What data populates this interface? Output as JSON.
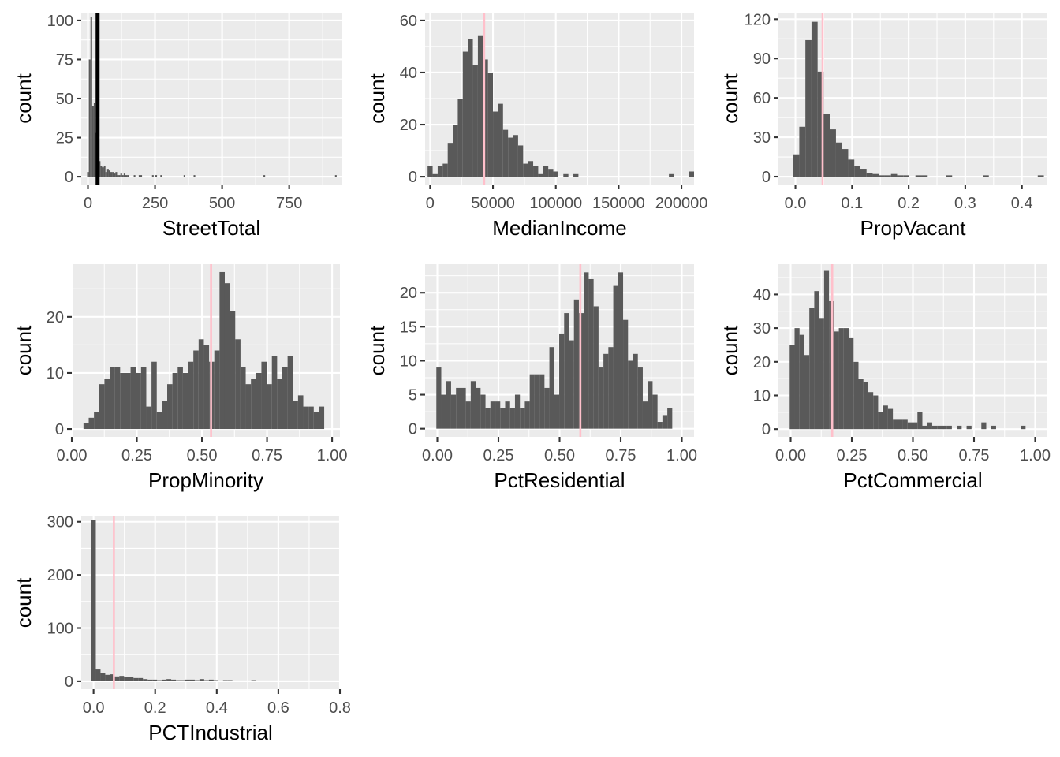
{
  "chart_data": [
    {
      "type": "bar",
      "subtype": "histogram",
      "xlabel": "StreetTotal",
      "ylabel": "count",
      "xlim": [
        -25,
        945
      ],
      "ylim": [
        -5,
        105
      ],
      "x_ticks": [
        0,
        250,
        500,
        750
      ],
      "x_tick_labels": [
        "0",
        "250",
        "500",
        "750"
      ],
      "y_ticks": [
        0,
        25,
        50,
        75,
        100
      ],
      "y_tick_labels": [
        "0",
        "25",
        "50",
        "75",
        "100"
      ],
      "bins": {
        "start": -3,
        "width": 6.2,
        "counts": [
          3,
          75,
          102,
          45,
          47,
          28,
          14,
          10,
          7,
          6,
          7,
          3,
          5,
          4,
          3,
          3,
          2,
          3,
          1,
          1,
          2,
          1,
          2,
          1,
          1,
          0,
          0,
          0,
          1,
          0,
          0,
          1,
          1,
          0,
          0,
          0,
          0,
          0,
          0,
          1,
          0,
          1,
          0,
          0,
          1,
          0,
          0,
          0,
          0,
          0,
          0,
          0,
          0,
          0,
          0,
          0,
          0,
          0,
          1,
          0,
          0,
          0,
          0,
          0,
          1,
          0,
          0,
          0,
          0,
          0,
          0,
          0,
          0,
          0,
          0,
          0,
          0,
          0,
          0,
          0,
          0,
          0,
          0,
          0,
          0,
          0,
          0,
          0,
          0,
          0,
          0,
          0,
          0,
          0,
          0,
          0,
          0,
          0,
          0,
          0,
          0,
          0,
          0,
          0,
          0,
          0,
          1,
          0,
          0,
          0,
          0,
          0,
          0,
          0,
          0,
          0,
          0,
          0,
          0,
          0,
          0,
          0,
          0,
          0,
          0,
          0,
          0,
          0,
          0,
          0,
          0,
          0,
          0,
          0,
          0,
          0,
          0,
          0,
          0,
          0,
          0,
          0,
          0,
          0,
          0,
          0,
          0,
          0,
          0,
          1
        ]
      },
      "vline": {
        "x": 36,
        "color": "#000000"
      }
    },
    {
      "type": "bar",
      "subtype": "histogram",
      "xlabel": "MedianIncome",
      "ylabel": "count",
      "xlim": [
        -4000,
        210000
      ],
      "ylim": [
        -3,
        63
      ],
      "x_ticks": [
        0,
        50000,
        100000,
        150000,
        200000
      ],
      "x_tick_labels": [
        "0",
        "50000",
        "100000",
        "150000",
        "200000"
      ],
      "y_ticks": [
        0,
        20,
        40,
        60
      ],
      "y_tick_labels": [
        "0",
        "20",
        "40",
        "60"
      ],
      "bins": {
        "start": -2000,
        "width": 4000,
        "counts": [
          4,
          1,
          4,
          5,
          13,
          20,
          30,
          48,
          53,
          43,
          54,
          45,
          40,
          25,
          28,
          18,
          15,
          16,
          12,
          5,
          6,
          4,
          1,
          4,
          3,
          2,
          0,
          1,
          0,
          1,
          0,
          0,
          0,
          0,
          0,
          0,
          0,
          0,
          0,
          0,
          0,
          0,
          0,
          0,
          0,
          0,
          0,
          0,
          1,
          0,
          0,
          0,
          2
        ]
      },
      "vline": {
        "x": 43000,
        "color": "#ffc0cb"
      }
    },
    {
      "type": "bar",
      "subtype": "histogram",
      "xlabel": "PropVacant",
      "ylabel": "count",
      "xlim": [
        -0.03,
        0.445
      ],
      "ylim": [
        -6,
        125
      ],
      "x_ticks": [
        0.0,
        0.1,
        0.2,
        0.3,
        0.4
      ],
      "x_tick_labels": [
        "0.0",
        "0.1",
        "0.2",
        "0.3",
        "0.4"
      ],
      "y_ticks": [
        0,
        30,
        60,
        90,
        120
      ],
      "y_tick_labels": [
        "0",
        "30",
        "60",
        "90",
        "120"
      ],
      "bins": {
        "start": -0.004,
        "width": 0.0108,
        "counts": [
          17,
          38,
          104,
          118,
          80,
          48,
          36,
          26,
          21,
          13,
          8,
          6,
          3,
          2,
          1,
          1,
          2,
          1,
          1,
          0,
          1,
          1,
          0,
          0,
          0,
          1,
          0,
          0,
          0,
          0,
          0,
          1,
          0,
          0,
          0,
          0,
          0,
          0,
          0,
          0,
          1
        ]
      },
      "vline": {
        "x": 0.048,
        "color": "#ffc0cb"
      }
    },
    {
      "type": "bar",
      "subtype": "histogram",
      "xlabel": "PropMinority",
      "ylabel": "count",
      "xlim": [
        0.0,
        1.03
      ],
      "ylim": [
        -1.4,
        29.4
      ],
      "x_ticks": [
        0.0,
        0.25,
        0.5,
        0.75,
        1.0
      ],
      "x_tick_labels": [
        "0.00",
        "0.25",
        "0.50",
        "0.75",
        "1.00"
      ],
      "y_ticks": [
        0,
        10,
        20
      ],
      "y_tick_labels": [
        "0",
        "10",
        "20"
      ],
      "bins": {
        "start": 0.045,
        "width": 0.0201,
        "counts": [
          1,
          2,
          3,
          8,
          9,
          11,
          11,
          10,
          10,
          11,
          10,
          11,
          4,
          12,
          3,
          5,
          8,
          10,
          11,
          10,
          12,
          14,
          16,
          15,
          12,
          14,
          28,
          26,
          21,
          16,
          11,
          8,
          9,
          10,
          12,
          8,
          13,
          9,
          11,
          13,
          5,
          6,
          4,
          4,
          3,
          4
        ]
      },
      "vline": {
        "x": 0.535,
        "color": "#ffc0cb"
      }
    },
    {
      "type": "bar",
      "subtype": "histogram",
      "xlabel": "PctResidential",
      "ylabel": "count",
      "xlim": [
        -0.05,
        1.05
      ],
      "ylim": [
        -1.2,
        24.2
      ],
      "x_ticks": [
        0.0,
        0.25,
        0.5,
        0.75,
        1.0
      ],
      "x_tick_labels": [
        "0.00",
        "0.25",
        "0.50",
        "0.75",
        "1.00"
      ],
      "y_ticks": [
        0,
        5,
        10,
        15,
        20
      ],
      "y_tick_labels": [
        "0",
        "5",
        "10",
        "15",
        "20"
      ],
      "bins": {
        "start": -0.004,
        "width": 0.0201,
        "counts": [
          9,
          5,
          7,
          5,
          6,
          6,
          4,
          7,
          6,
          5,
          3,
          4,
          4,
          3,
          4,
          3,
          5,
          3,
          4,
          8,
          8,
          8,
          6,
          12,
          5,
          14,
          17,
          13,
          19,
          17,
          23,
          22,
          18,
          9,
          11,
          12,
          21,
          23,
          16,
          10,
          11,
          9,
          4,
          7,
          5,
          1,
          2,
          3
        ]
      },
      "vline": {
        "x": 0.585,
        "color": "#ffc0cb"
      }
    },
    {
      "type": "bar",
      "subtype": "histogram",
      "xlabel": "PctCommercial",
      "ylabel": "count",
      "xlim": [
        -0.05,
        1.05
      ],
      "ylim": [
        -2.3,
        49
      ],
      "x_ticks": [
        0.0,
        0.25,
        0.5,
        0.75,
        1.0
      ],
      "x_tick_labels": [
        "0.00",
        "0.25",
        "0.50",
        "0.75",
        "1.00"
      ],
      "y_ticks": [
        0,
        10,
        20,
        30,
        40
      ],
      "y_tick_labels": [
        "0",
        "10",
        "20",
        "30",
        "40"
      ],
      "bins": {
        "start": -0.004,
        "width": 0.0201,
        "counts": [
          25,
          30,
          28,
          22,
          36,
          41,
          33,
          47,
          38,
          29,
          30,
          30,
          27,
          20,
          15,
          14,
          11,
          10,
          5,
          7,
          6,
          3,
          3,
          3,
          2,
          2,
          5,
          1,
          2,
          1,
          1,
          1,
          1,
          0,
          1,
          0,
          1,
          0,
          0,
          2,
          0,
          1,
          0,
          0,
          0,
          0,
          0,
          1,
          0,
          0,
          0
        ]
      },
      "vline": {
        "x": 0.17,
        "color": "#ffc0cb"
      }
    },
    {
      "type": "bar",
      "subtype": "histogram",
      "xlabel": "PCTIndustrial",
      "ylabel": "count",
      "xlim": [
        -0.04,
        0.8
      ],
      "ylim": [
        -15,
        310
      ],
      "x_ticks": [
        0.0,
        0.2,
        0.4,
        0.6,
        0.8
      ],
      "x_tick_labels": [
        "0.0",
        "0.2",
        "0.4",
        "0.6",
        "0.8"
      ],
      "y_ticks": [
        0,
        100,
        200,
        300
      ],
      "y_tick_labels": [
        "0",
        "100",
        "200",
        "300"
      ],
      "bins": {
        "start": -0.008,
        "width": 0.0153,
        "counts": [
          303,
          22,
          16,
          12,
          13,
          9,
          10,
          8,
          8,
          6,
          6,
          4,
          3,
          3,
          2,
          3,
          4,
          3,
          2,
          2,
          3,
          3,
          2,
          4,
          2,
          3,
          2,
          1,
          2,
          2,
          1,
          1,
          1,
          0,
          2,
          1,
          1,
          1,
          0,
          1,
          1,
          0,
          0,
          0,
          1,
          1,
          0,
          0,
          1
        ]
      },
      "vline": {
        "x": 0.066,
        "color": "#ffc0cb"
      }
    }
  ]
}
